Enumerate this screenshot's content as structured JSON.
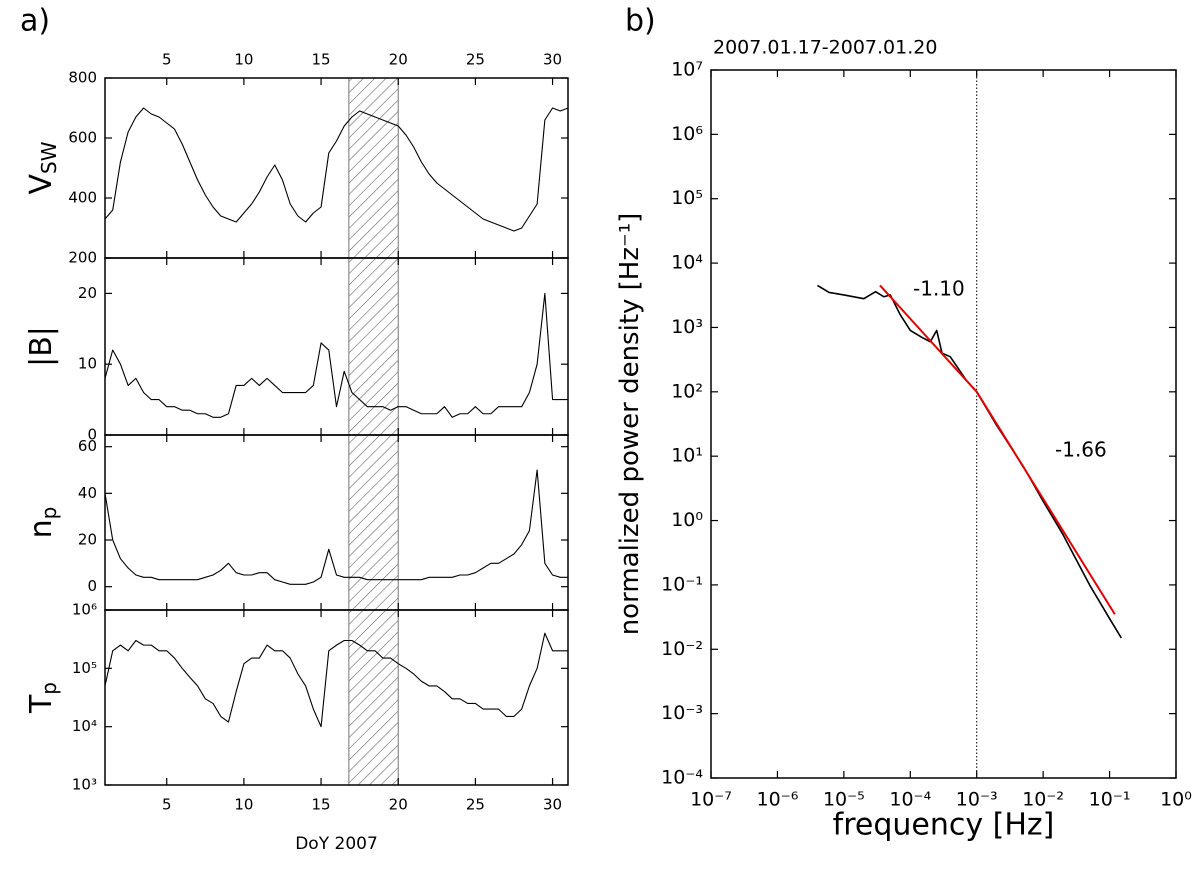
{
  "chart_data": [
    {
      "type": "line",
      "panel_label": "a)",
      "ylabel": "V",
      "ylabel_sub": "SW",
      "xtick_labels": "top",
      "xlim": [
        1,
        31
      ],
      "xticks": [
        5,
        10,
        15,
        20,
        25,
        30
      ],
      "ylim": [
        200,
        800
      ],
      "yticks": [
        200,
        400,
        600,
        800
      ],
      "shaded": [
        16.8,
        20
      ],
      "color": "#000000",
      "x": [
        1,
        1.5,
        2,
        2.5,
        3,
        3.5,
        4,
        4.5,
        5,
        5.5,
        6,
        6.5,
        7,
        7.5,
        8,
        8.5,
        9,
        9.5,
        10,
        10.5,
        11,
        11.5,
        12,
        12.5,
        13,
        13.5,
        14,
        14.5,
        15,
        15.5,
        16,
        16.5,
        17,
        17.5,
        18,
        18.5,
        19,
        19.5,
        20,
        20.5,
        21,
        21.5,
        22,
        22.5,
        23,
        23.5,
        24,
        24.5,
        25,
        25.5,
        26,
        26.5,
        27,
        27.5,
        28,
        28.5,
        29,
        29.5,
        30,
        30.5,
        31
      ],
      "values": [
        330,
        360,
        520,
        620,
        670,
        700,
        680,
        670,
        650,
        630,
        580,
        520,
        460,
        410,
        370,
        340,
        330,
        320,
        350,
        380,
        420,
        470,
        510,
        460,
        380,
        340,
        320,
        350,
        370,
        550,
        590,
        640,
        670,
        690,
        680,
        670,
        660,
        650,
        640,
        610,
        570,
        520,
        480,
        450,
        430,
        410,
        390,
        370,
        350,
        330,
        320,
        310,
        300,
        290,
        300,
        340,
        380,
        660,
        700,
        690,
        700
      ]
    },
    {
      "type": "line",
      "ylabel": "|B|",
      "xtick_labels": "none",
      "xlim": [
        1,
        31
      ],
      "xticks": [
        5,
        10,
        15,
        20,
        25,
        30
      ],
      "ylim": [
        0,
        25
      ],
      "yticks": [
        0,
        10,
        20
      ],
      "shaded": [
        16.8,
        20
      ],
      "color": "#000000",
      "x": [
        1,
        1.5,
        2,
        2.5,
        3,
        3.5,
        4,
        4.5,
        5,
        5.5,
        6,
        6.5,
        7,
        7.5,
        8,
        8.5,
        9,
        9.5,
        10,
        10.5,
        11,
        11.5,
        12,
        12.5,
        13,
        13.5,
        14,
        14.5,
        15,
        15.5,
        16,
        16.5,
        17,
        17.5,
        18,
        18.5,
        19,
        19.5,
        20,
        20.5,
        21,
        21.5,
        22,
        22.5,
        23,
        23.5,
        24,
        24.5,
        25,
        25.5,
        26,
        26.5,
        27,
        27.5,
        28,
        28.5,
        29,
        29.5,
        30,
        30.5,
        31
      ],
      "values": [
        8,
        12,
        10,
        7,
        8,
        6,
        5,
        5,
        4,
        4,
        3.5,
        3.5,
        3,
        3,
        2.5,
        2.5,
        3,
        7,
        7,
        8,
        7,
        8,
        7,
        6,
        6,
        6,
        6,
        7,
        13,
        12,
        4,
        9,
        6,
        5,
        4,
        4,
        4,
        3.5,
        4,
        4,
        3.5,
        3,
        3,
        3,
        4,
        2.5,
        3,
        3,
        4,
        3,
        3,
        4,
        4,
        4,
        4,
        6,
        10,
        20,
        5,
        5,
        5
      ]
    },
    {
      "type": "line",
      "ylabel": "n",
      "ylabel_sub": "p",
      "xtick_labels": "none",
      "xlim": [
        1,
        31
      ],
      "xticks": [
        5,
        10,
        15,
        20,
        25,
        30
      ],
      "ylim": [
        -10,
        65
      ],
      "yticks": [
        0,
        20,
        40,
        60
      ],
      "shaded": [
        16.8,
        20
      ],
      "color": "#000000",
      "x": [
        1,
        1.5,
        2,
        2.5,
        3,
        3.5,
        4,
        4.5,
        5,
        5.5,
        6,
        6.5,
        7,
        7.5,
        8,
        8.5,
        9,
        9.5,
        10,
        10.5,
        11,
        11.5,
        12,
        12.5,
        13,
        13.5,
        14,
        14.5,
        15,
        15.5,
        16,
        16.5,
        17,
        17.5,
        18,
        18.5,
        19,
        19.5,
        20,
        20.5,
        21,
        21.5,
        22,
        22.5,
        23,
        23.5,
        24,
        24.5,
        25,
        25.5,
        26,
        26.5,
        27,
        27.5,
        28,
        28.5,
        29,
        29.5,
        30,
        30.5,
        31
      ],
      "values": [
        40,
        20,
        12,
        8,
        5,
        4,
        4,
        3,
        3,
        3,
        3,
        3,
        3,
        4,
        5,
        7,
        10,
        6,
        5,
        5,
        6,
        6,
        3,
        2,
        1,
        1,
        1,
        2,
        4,
        16,
        5,
        4,
        4,
        4,
        3,
        3,
        3,
        3,
        3,
        3,
        3,
        3,
        4,
        4,
        4,
        4,
        5,
        5,
        6,
        8,
        10,
        10,
        12,
        14,
        18,
        24,
        50,
        10,
        5,
        4,
        4
      ]
    },
    {
      "type": "line",
      "ylabel": "T",
      "ylabel_sub": "p",
      "xtick_labels": "bottom",
      "xlabel": "DoY 2007",
      "xlim": [
        1,
        31
      ],
      "xticks": [
        5,
        10,
        15,
        20,
        25,
        30
      ],
      "ylog": true,
      "ylim": [
        1000,
        1000000
      ],
      "yticks": [
        {
          "value": 1000,
          "label": "10³"
        },
        {
          "value": 10000,
          "label": "10⁴"
        },
        {
          "value": 100000,
          "label": "10⁵"
        },
        {
          "value": 1000000,
          "label": "10⁶"
        }
      ],
      "shaded": [
        16.8,
        20
      ],
      "color": "#000000",
      "x": [
        1,
        1.5,
        2,
        2.5,
        3,
        3.5,
        4,
        4.5,
        5,
        5.5,
        6,
        6.5,
        7,
        7.5,
        8,
        8.5,
        9,
        9.5,
        10,
        10.5,
        11,
        11.5,
        12,
        12.5,
        13,
        13.5,
        14,
        14.5,
        15,
        15.5,
        16,
        16.5,
        17,
        17.5,
        18,
        18.5,
        19,
        19.5,
        20,
        20.5,
        21,
        21.5,
        22,
        22.5,
        23,
        23.5,
        24,
        24.5,
        25,
        25.5,
        26,
        26.5,
        27,
        27.5,
        28,
        28.5,
        29,
        29.5,
        30,
        30.5,
        31
      ],
      "values": [
        50000,
        200000,
        250000,
        200000,
        300000,
        250000,
        250000,
        200000,
        200000,
        150000,
        100000,
        70000,
        50000,
        30000,
        25000,
        15000,
        12000,
        40000,
        120000,
        150000,
        150000,
        250000,
        200000,
        200000,
        150000,
        80000,
        50000,
        20000,
        10000,
        200000,
        250000,
        300000,
        300000,
        250000,
        200000,
        200000,
        150000,
        150000,
        120000,
        100000,
        80000,
        60000,
        50000,
        50000,
        40000,
        30000,
        30000,
        25000,
        25000,
        20000,
        20000,
        20000,
        15000,
        15000,
        20000,
        50000,
        100000,
        400000,
        200000,
        200000,
        200000
      ]
    },
    {
      "type": "loglog",
      "panel_label": "b)",
      "title": "2007.01.17-2007.01.20",
      "xlabel": "frequency [Hz]",
      "ylabel": "normalized power density [Hz⁻¹]",
      "xtick_labels": "bottom",
      "xlog": true,
      "ylog": true,
      "xlim": [
        1e-07,
        1
      ],
      "ylim": [
        0.0001,
        10000000.0
      ],
      "xticks": [
        {
          "value": 1e-07,
          "label": "10⁻⁷"
        },
        {
          "value": 1e-06,
          "label": "10⁻⁶"
        },
        {
          "value": 1e-05,
          "label": "10⁻⁵"
        },
        {
          "value": 0.0001,
          "label": "10⁻⁴"
        },
        {
          "value": 0.001,
          "label": "10⁻³"
        },
        {
          "value": 0.01,
          "label": "10⁻²"
        },
        {
          "value": 0.1,
          "label": "10⁻¹"
        },
        {
          "value": 1,
          "label": "10⁰"
        }
      ],
      "yticks": [
        {
          "value": 0.0001,
          "label": "10⁻⁴"
        },
        {
          "value": 0.001,
          "label": "10⁻³"
        },
        {
          "value": 0.01,
          "label": "10⁻²"
        },
        {
          "value": 0.1,
          "label": "10⁻¹"
        },
        {
          "value": 1,
          "label": "10⁰"
        },
        {
          "value": 10,
          "label": "10¹"
        },
        {
          "value": 100,
          "label": "10²"
        },
        {
          "value": 1000,
          "label": "10³"
        },
        {
          "value": 10000,
          "label": "10⁴"
        },
        {
          "value": 100000,
          "label": "10⁵"
        },
        {
          "value": 1000000,
          "label": "10⁶"
        },
        {
          "value": 10000000,
          "label": "10⁷"
        }
      ],
      "vline": 0.001,
      "color": "#000000",
      "x": [
        4e-06,
        6e-06,
        1e-05,
        2e-05,
        3e-05,
        4e-05,
        5e-05,
        7e-05,
        0.0001,
        0.00015,
        0.0002,
        0.00025,
        0.0003,
        0.0004,
        0.0005,
        0.0007,
        0.001,
        0.002,
        0.005,
        0.01,
        0.02,
        0.05,
        0.1,
        0.15
      ],
      "values": [
        4500,
        3500,
        3200,
        2800,
        3600,
        3000,
        3200,
        1600,
        900,
        700,
        600,
        900,
        400,
        350,
        250,
        150,
        100,
        30,
        7,
        2,
        0.6,
        0.1,
        0.03,
        0.015
      ],
      "fits": [
        {
          "color": "#e00000",
          "x": [
            3.5e-05,
            0.001
          ],
          "values": [
            4500,
            100
          ]
        },
        {
          "color": "#e00000",
          "x": [
            0.001,
            0.12
          ],
          "values": [
            100,
            0.035
          ]
        }
      ],
      "annotations": [
        "-1.10",
        "-1.66"
      ]
    }
  ]
}
